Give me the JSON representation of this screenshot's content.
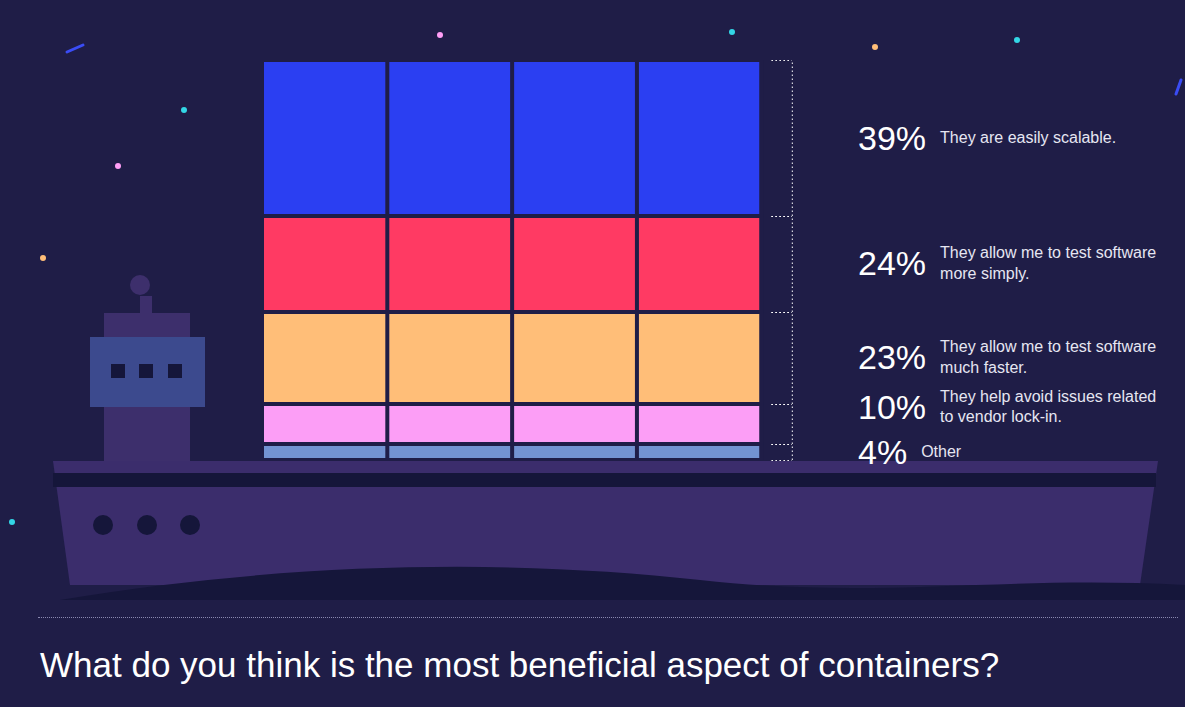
{
  "chart_data": {
    "type": "bar",
    "title": "What do you think is the most beneficial aspect of containers?",
    "categories": [
      "They are easily scalable.",
      "They allow me to test software more simply.",
      "They allow me to test software much faster.",
      "They help avoid issues related to vendor lock-in.",
      "Other"
    ],
    "values": [
      39,
      24,
      23,
      10,
      4
    ],
    "value_labels": [
      "39%",
      "24%",
      "23%",
      "10%",
      "4%"
    ],
    "colors": [
      "#2b3ff2",
      "#ff3a63",
      "#ffbe78",
      "#fc9ef6",
      "#7393d2"
    ],
    "stacked": true,
    "data_labels": true,
    "tick_labels": false,
    "ylim": [
      0,
      100
    ]
  }
}
